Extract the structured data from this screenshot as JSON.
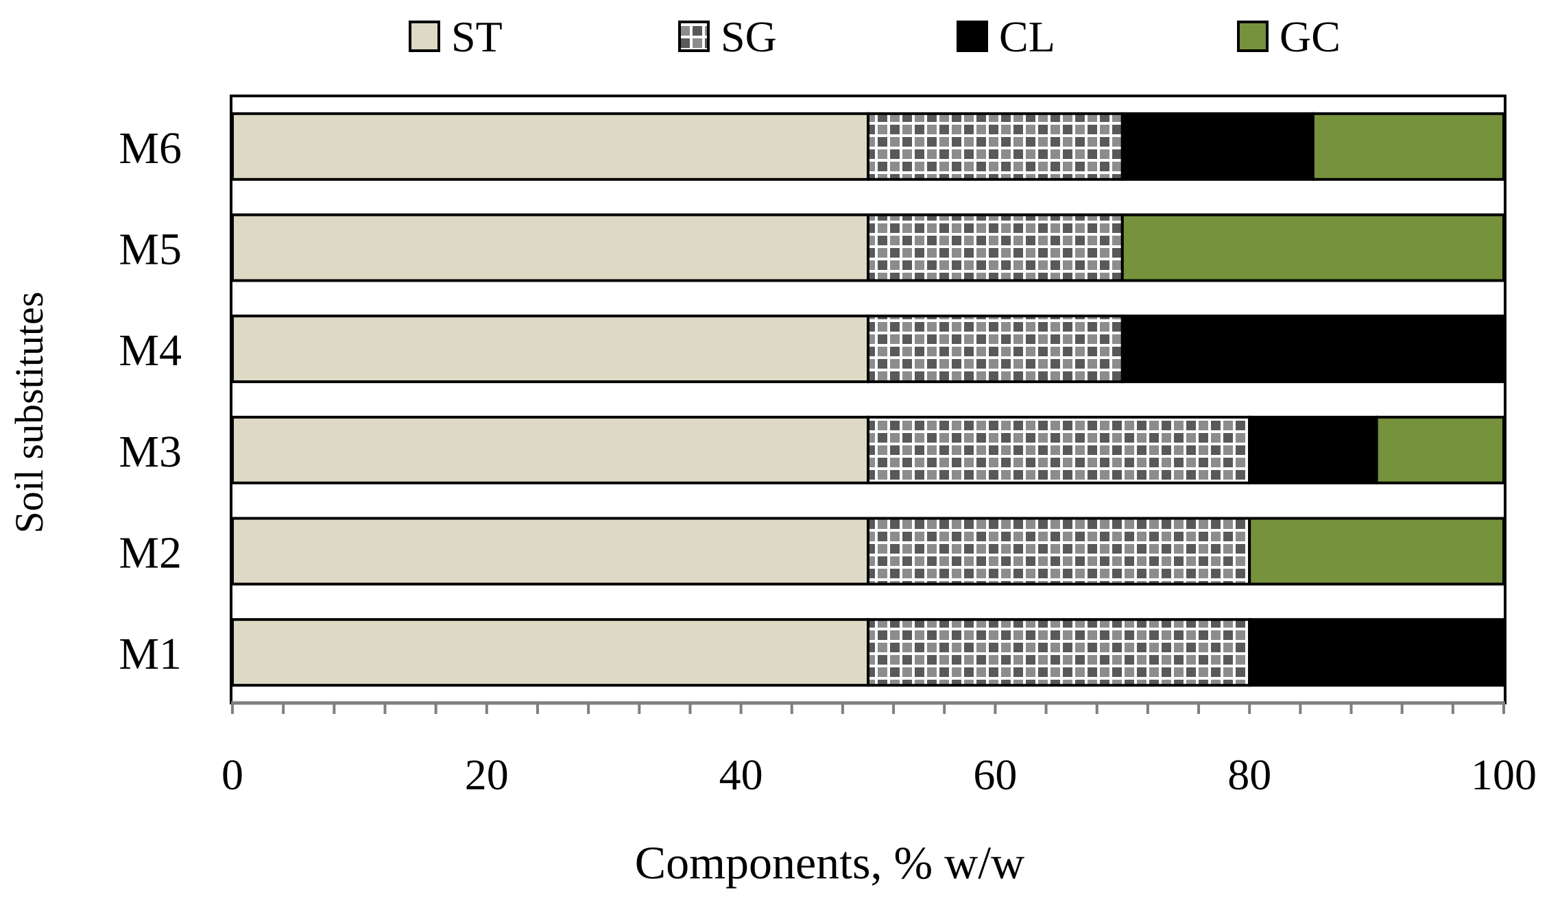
{
  "chart_data": {
    "type": "bar",
    "orientation": "horizontal",
    "stacked": true,
    "title": "",
    "xlabel": "Components, % w/w",
    "ylabel": "Soil substitutes",
    "xlim": [
      0,
      100
    ],
    "x_ticks": [
      0,
      20,
      40,
      60,
      80,
      100
    ],
    "x_tick_labels": [
      "0",
      "20",
      "40",
      "60",
      "80",
      "100"
    ],
    "categories": [
      "M1",
      "M2",
      "M3",
      "M4",
      "M5",
      "M6"
    ],
    "series": [
      {
        "name": "ST",
        "values": [
          50,
          50,
          50,
          50,
          50,
          50
        ],
        "color": "#ddd9c4",
        "pattern": "solid"
      },
      {
        "name": "SG",
        "values": [
          30,
          30,
          30,
          20,
          20,
          20
        ],
        "color": "#595959",
        "pattern": "checker"
      },
      {
        "name": "CL",
        "values": [
          20,
          0,
          10,
          30,
          0,
          15
        ],
        "color": "#000000",
        "pattern": "solid"
      },
      {
        "name": "GC",
        "values": [
          0,
          20,
          10,
          0,
          30,
          15
        ],
        "color": "#76923c",
        "pattern": "solid"
      }
    ],
    "legend_position": "top",
    "grid": false
  }
}
